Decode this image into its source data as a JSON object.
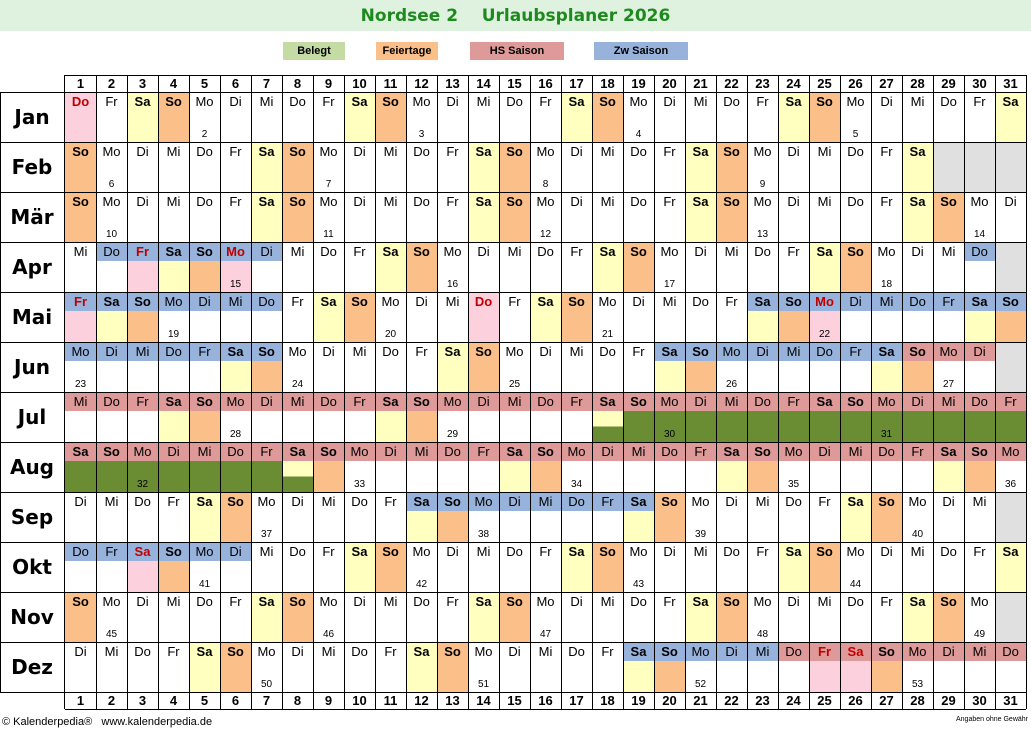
{
  "title": "Nordsee 2    Urlaubsplaner 2026",
  "legend": [
    {
      "label": "Belegt",
      "color": "#c4dca4"
    },
    {
      "label": "Feiertage",
      "color": "#fbc08a"
    },
    {
      "label": "HS Saison",
      "color": "#dd9a98"
    },
    {
      "label": "Zw Saison",
      "color": "#97b3dc"
    }
  ],
  "colors": {
    "weekend": "#ffffc0",
    "holiday": "#fbc08a",
    "holiday_light": "#fcd0dc",
    "hs": "#dd9a98",
    "zw": "#97b3dc",
    "booked": "#6a8c33",
    "disabled": "#e0e0e0",
    "grid": "#000000"
  },
  "days": [
    "1",
    "2",
    "3",
    "4",
    "5",
    "6",
    "7",
    "8",
    "9",
    "10",
    "11",
    "12",
    "13",
    "14",
    "15",
    "16",
    "17",
    "18",
    "19",
    "20",
    "21",
    "22",
    "23",
    "24",
    "25",
    "26",
    "27",
    "28",
    "29",
    "30",
    "31"
  ],
  "months": [
    {
      "name": "Jan",
      "start": 4,
      "len": 31,
      "weeks": {
        "5": "2",
        "12": "3",
        "19": "4",
        "26": "5"
      },
      "holidays": [
        1
      ],
      "hs": [],
      "zw": [],
      "booked": [],
      "partial": []
    },
    {
      "name": "Feb",
      "start": 0,
      "len": 28,
      "weeks": {
        "2": "6",
        "9": "7",
        "16": "8",
        "23": "9"
      },
      "holidays": [],
      "hs": [],
      "zw": [],
      "booked": [],
      "partial": []
    },
    {
      "name": "Mär",
      "start": 0,
      "len": 31,
      "weeks": {
        "2": "10",
        "9": "11",
        "16": "12",
        "23": "13",
        "30": "14"
      },
      "holidays": [],
      "hs": [],
      "zw": [],
      "booked": [],
      "partial": []
    },
    {
      "name": "Apr",
      "start": 3,
      "len": 30,
      "weeks": {
        "6": "15",
        "13": "16",
        "20": "17",
        "27": "18"
      },
      "holidays": [
        3,
        6
      ],
      "hs": [],
      "zw": [
        2,
        3,
        4,
        5,
        6,
        7,
        30
      ],
      "booked": [],
      "partial": []
    },
    {
      "name": "Mai",
      "start": 5,
      "len": 31,
      "weeks": {
        "4": "19",
        "11": "20",
        "18": "21",
        "25": "22"
      },
      "holidays": [
        1,
        14,
        25
      ],
      "hs": [],
      "zw": [
        1,
        2,
        3,
        4,
        5,
        6,
        7,
        23,
        24,
        25,
        26,
        27,
        28,
        29,
        30,
        31
      ],
      "booked": [],
      "partial": []
    },
    {
      "name": "Jun",
      "start": 1,
      "len": 30,
      "weeks": {
        "1": "23",
        "8": "24",
        "15": "25",
        "22": "26",
        "29": "27"
      },
      "holidays": [],
      "hs": [
        28,
        29,
        30
      ],
      "zw": [
        1,
        2,
        3,
        4,
        5,
        6,
        7,
        20,
        21,
        22,
        23,
        24,
        25,
        26,
        27
      ],
      "booked": [],
      "partial": []
    },
    {
      "name": "Jul",
      "start": 3,
      "len": 31,
      "weeks": {
        "6": "28",
        "13": "29",
        "20": "30",
        "27": "31"
      },
      "holidays": [],
      "hs": [
        1,
        2,
        3,
        4,
        5,
        6,
        7,
        8,
        9,
        10,
        11,
        12,
        13,
        14,
        15,
        16,
        17,
        18,
        19,
        20,
        21,
        22,
        23,
        24,
        25,
        26,
        27,
        28,
        29,
        30,
        31
      ],
      "zw": [],
      "booked": [
        19,
        20,
        21,
        22,
        23,
        24,
        25,
        26,
        27,
        28,
        29,
        30,
        31
      ],
      "partial": [
        18
      ]
    },
    {
      "name": "Aug",
      "start": 6,
      "len": 31,
      "weeks": {
        "3": "32",
        "10": "33",
        "17": "34",
        "24": "35",
        "31": "36"
      },
      "holidays": [],
      "hs": [
        1,
        2,
        3,
        4,
        5,
        6,
        7,
        8,
        9,
        10,
        11,
        12,
        13,
        14,
        15,
        16,
        17,
        18,
        19,
        20,
        21,
        22,
        23,
        24,
        25,
        26,
        27,
        28,
        29,
        30,
        31
      ],
      "zw": [],
      "booked": [
        1,
        2,
        3,
        4,
        5,
        6,
        7
      ],
      "partial": [
        8
      ]
    },
    {
      "name": "Sep",
      "start": 2,
      "len": 30,
      "weeks": {
        "7": "37",
        "14": "38",
        "21": "39",
        "28": "40"
      },
      "holidays": [],
      "hs": [],
      "zw": [
        12,
        13,
        14,
        15,
        16,
        17,
        18,
        19
      ],
      "booked": [],
      "partial": []
    },
    {
      "name": "Okt",
      "start": 4,
      "len": 31,
      "weeks": {
        "5": "41",
        "12": "42",
        "19": "43",
        "26": "44"
      },
      "holidays": [
        3
      ],
      "hs": [],
      "zw": [
        1,
        2,
        3,
        4,
        5,
        6
      ],
      "booked": [],
      "partial": []
    },
    {
      "name": "Nov",
      "start": 0,
      "len": 30,
      "weeks": {
        "2": "45",
        "9": "46",
        "16": "47",
        "23": "48",
        "30": "49"
      },
      "holidays": [],
      "hs": [],
      "zw": [],
      "booked": [],
      "partial": []
    },
    {
      "name": "Dez",
      "start": 2,
      "len": 31,
      "weeks": {
        "7": "50",
        "14": "51",
        "21": "52",
        "28": "53"
      },
      "holidays": [
        25,
        26
      ],
      "hs": [
        24,
        25,
        26,
        27,
        28,
        29,
        30,
        31
      ],
      "zw": [
        19,
        20,
        21,
        22,
        23
      ],
      "booked": [],
      "partial": []
    }
  ],
  "weekdays": [
    "So",
    "Mo",
    "Di",
    "Mi",
    "Do",
    "Fr",
    "Sa"
  ],
  "footer": {
    "left": "© Kalenderpedia®   www.kalenderpedia.de",
    "right": "Angaben ohne Gewähr"
  }
}
